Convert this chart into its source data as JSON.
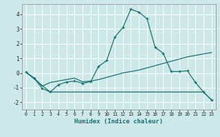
{
  "xlabel": "Humidex (Indice chaleur)",
  "bg_color": "#cde8e8",
  "grid_color": "#ffffff",
  "line_color": "#1a7070",
  "xlim": [
    -0.5,
    23.5
  ],
  "ylim": [
    -2.5,
    4.7
  ],
  "xticks": [
    0,
    1,
    2,
    3,
    4,
    5,
    6,
    7,
    8,
    9,
    10,
    11,
    12,
    13,
    14,
    15,
    16,
    17,
    18,
    19,
    20,
    21,
    22,
    23
  ],
  "yticks": [
    -2,
    -1,
    0,
    1,
    2,
    3,
    4
  ],
  "line1_x": [
    0,
    1,
    2,
    3,
    4,
    5,
    6,
    7,
    8,
    9,
    10,
    11,
    12,
    13,
    14,
    15,
    16,
    17,
    18,
    19,
    20,
    21,
    22,
    23
  ],
  "line1_y": [
    0.05,
    -0.35,
    -1.05,
    -1.3,
    -0.8,
    -0.62,
    -0.55,
    -0.7,
    -0.6,
    0.45,
    0.85,
    2.45,
    3.1,
    4.35,
    4.15,
    3.7,
    1.75,
    1.35,
    0.1,
    0.1,
    0.15,
    -0.65,
    -1.3,
    -1.85
  ],
  "line2_x": [
    0,
    1,
    2,
    3,
    4,
    5,
    6,
    7,
    8,
    9,
    10,
    11,
    12,
    13,
    14,
    15,
    16,
    17,
    18,
    19,
    20,
    21,
    22,
    23
  ],
  "line2_y": [
    0.05,
    -0.35,
    -0.9,
    -0.65,
    -0.55,
    -0.45,
    -0.35,
    -0.6,
    -0.55,
    -0.45,
    -0.3,
    -0.15,
    0.0,
    0.1,
    0.2,
    0.35,
    0.5,
    0.65,
    0.8,
    0.95,
    1.1,
    1.2,
    1.3,
    1.4
  ],
  "line3_x": [
    0,
    3,
    4,
    5,
    6,
    7,
    8,
    9,
    10,
    11,
    12,
    13,
    14,
    15,
    16,
    17,
    18,
    19,
    20,
    21,
    22,
    23
  ],
  "line3_y": [
    0.05,
    -1.3,
    -1.3,
    -1.3,
    -1.3,
    -1.3,
    -1.3,
    -1.3,
    -1.3,
    -1.3,
    -1.3,
    -1.3,
    -1.3,
    -1.3,
    -1.3,
    -1.3,
    -1.3,
    -1.3,
    -1.3,
    -1.3,
    -1.3,
    -1.85
  ]
}
